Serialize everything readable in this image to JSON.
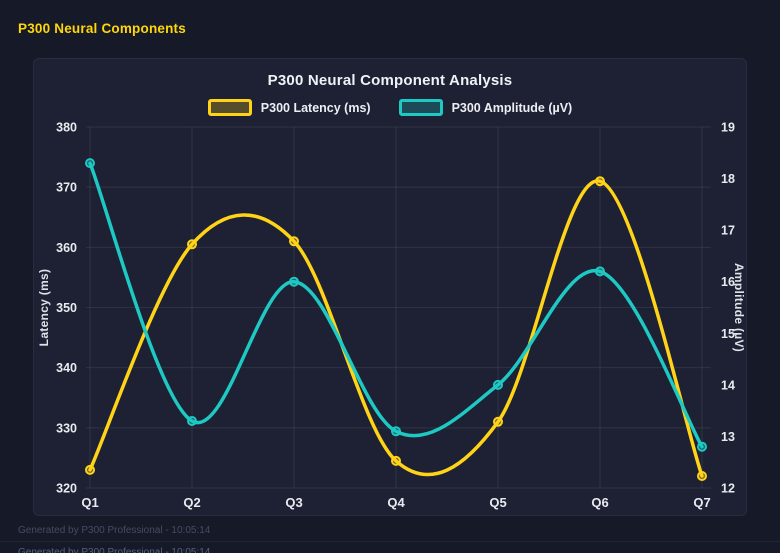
{
  "page": {
    "header": "P300 Neural Components",
    "footer": "Generated by P300 Professional - 10:05:14"
  },
  "colors": {
    "page_bg": "#161a28",
    "panel_bg": "#1d2133",
    "grid": "rgba(255,255,255,0.08)",
    "accent_yellow": "#ffd318",
    "accent_teal": "#1ec9c4",
    "text_primary": "#f0f2f7",
    "text_muted": "#454c61"
  },
  "chart_data": {
    "type": "line",
    "title": "P300 Neural Component Analysis",
    "smooth": true,
    "grid": true,
    "legend_position": "top",
    "categories": [
      "Q1",
      "Q2",
      "Q3",
      "Q4",
      "Q5",
      "Q6",
      "Q7"
    ],
    "series": [
      {
        "name": "P300 Latency (ms)",
        "axis": "left",
        "color": "#ffd318",
        "values": [
          323,
          360.5,
          361,
          324.5,
          331,
          371,
          322
        ]
      },
      {
        "name": "P300 Amplitude (µV)",
        "axis": "right",
        "color": "#1ec9c4",
        "values": [
          18.3,
          13.3,
          16.0,
          13.1,
          14.0,
          16.2,
          12.8
        ]
      }
    ],
    "left_axis": {
      "label": "Latency (ms)",
      "min": 320,
      "max": 380,
      "tick_step": 10,
      "ticks": [
        320,
        330,
        340,
        350,
        360,
        370,
        380
      ]
    },
    "right_axis": {
      "label": "Amplitude (µV)",
      "min": 12,
      "max": 19,
      "tick_step": 1,
      "ticks": [
        12,
        13,
        14,
        15,
        16,
        17,
        18,
        19
      ]
    }
  }
}
